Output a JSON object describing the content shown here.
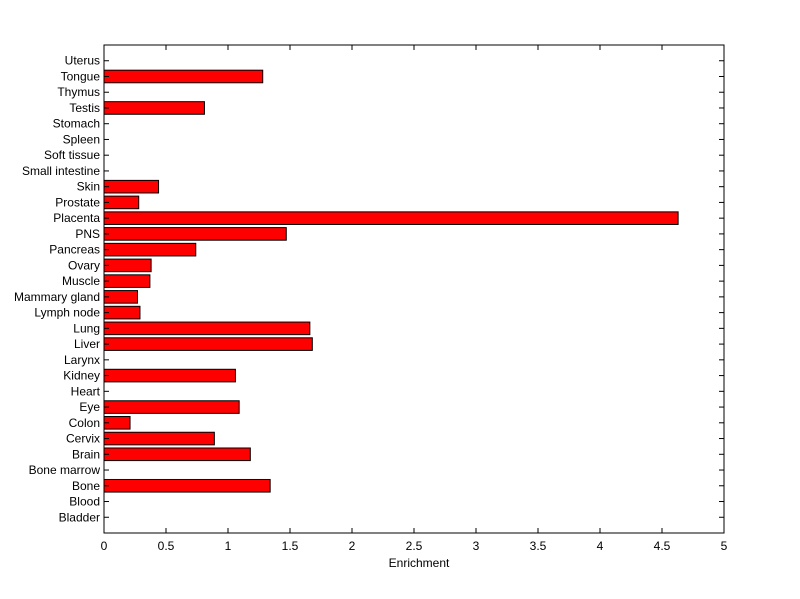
{
  "chart_data": {
    "type": "bar",
    "orientation": "horizontal",
    "title": "",
    "xlabel": "Enrichment",
    "ylabel": "",
    "xlim": [
      0,
      5
    ],
    "xticks": [
      0,
      0.5,
      1,
      1.5,
      2,
      2.5,
      3,
      3.5,
      4,
      4.5,
      5
    ],
    "xtick_labels": [
      "0",
      "0.5",
      "1",
      "1.5",
      "2",
      "2.5",
      "3",
      "3.5",
      "4",
      "4.5",
      "5"
    ],
    "categories": [
      "Bladder",
      "Blood",
      "Bone",
      "Bone marrow",
      "Brain",
      "Cervix",
      "Colon",
      "Eye",
      "Heart",
      "Kidney",
      "Larynx",
      "Liver",
      "Lung",
      "Lymph node",
      "Mammary gland",
      "Muscle",
      "Ovary",
      "Pancreas",
      "PNS",
      "Placenta",
      "Prostate",
      "Skin",
      "Small intestine",
      "Soft tissue",
      "Spleen",
      "Stomach",
      "Testis",
      "Thymus",
      "Tongue",
      "Uterus"
    ],
    "values": [
      0,
      0,
      1.34,
      0,
      1.18,
      0.89,
      0.21,
      1.09,
      0,
      1.06,
      0,
      1.68,
      1.66,
      0.29,
      0.27,
      0.37,
      0.38,
      0.74,
      1.47,
      4.63,
      0.28,
      0.44,
      0,
      0,
      0,
      0,
      0.81,
      0,
      1.28,
      0
    ],
    "bar_color": "#ff0000",
    "edge_color": "#000000",
    "grid": false,
    "legend": "none"
  }
}
